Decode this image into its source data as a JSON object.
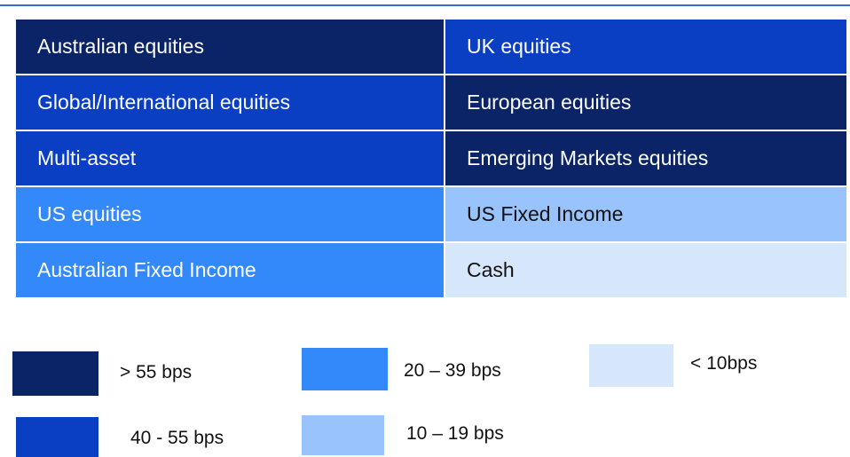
{
  "table": {
    "rows": [
      [
        {
          "label": "Australian equities",
          "color": "#0b2468"
        },
        {
          "label": "UK equities",
          "color": "#0b3fc3"
        }
      ],
      [
        {
          "label": "Global/International equities",
          "color": "#0b3fc3"
        },
        {
          "label": "European equities",
          "color": "#0b2468"
        }
      ],
      [
        {
          "label": "Multi-asset",
          "color": "#0b3fc3"
        },
        {
          "label": "Emerging Markets equities",
          "color": "#0b2468"
        }
      ],
      [
        {
          "label": "US equities",
          "color": "#3388fa"
        },
        {
          "label": "US Fixed Income",
          "color": "#99c3fc"
        }
      ],
      [
        {
          "label": "Australian Fixed Income",
          "color": "#3388fa"
        },
        {
          "label": "Cash",
          "color": "#d6e6fb"
        }
      ]
    ]
  },
  "legend": [
    {
      "label": "> 55 bps",
      "color": "#0b2468"
    },
    {
      "label": "40 - 55 bps",
      "color": "#0b3fc3"
    },
    {
      "label": "20 – 39 bps",
      "color": "#3388fa"
    },
    {
      "label": "10 – 19 bps",
      "color": "#99c3fc"
    },
    {
      "label": "< 10bps",
      "color": "#d6e6fb"
    }
  ]
}
